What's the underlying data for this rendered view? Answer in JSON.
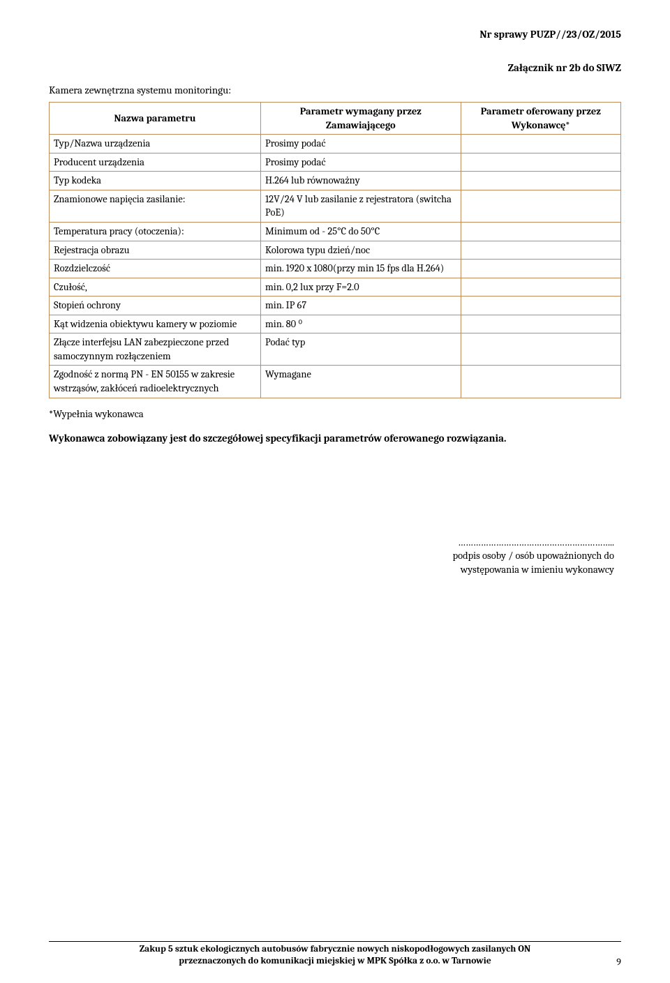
{
  "header": {
    "case_number": "Nr sprawy PUZP//23/OZ/2015",
    "attachment_label": "Załącznik nr 2b do SIWZ"
  },
  "section_title": "Kamera zewnętrzna systemu monitoringu:",
  "table": {
    "headers": {
      "col1": "Nazwa parametru",
      "col2": "Parametr wymagany przez Zamawiającego",
      "col3": "Parametr oferowany przez Wykonawcę*"
    },
    "rows": [
      {
        "name": "Typ/Nazwa urządzenia",
        "required": "Prosimy podać",
        "offered": ""
      },
      {
        "name": "Producent urządzenia",
        "required": "Prosimy podać",
        "offered": ""
      },
      {
        "name": "Typ kodeka",
        "required": "H.264 lub równoważny",
        "offered": ""
      },
      {
        "name": "Znamionowe napięcia zasilanie:",
        "required": "12V/24 V lub zasilanie z rejestratora (switcha PoE)",
        "offered": ""
      },
      {
        "name": "Temperatura pracy (otoczenia):",
        "required": "Minimum od - 25°C do 50°C",
        "offered": ""
      },
      {
        "name": "Rejestracja obrazu",
        "required": "Kolorowa typu dzień/noc",
        "offered": ""
      },
      {
        "name": "Rozdzielczość",
        "required": "min. 1920 x 1080(przy min 15 fps dla H.264)",
        "offered": ""
      },
      {
        "name": "Czułość,",
        "required": "min. 0,2 lux przy F=2.0",
        "offered": ""
      },
      {
        "name": "Stopień ochrony",
        "required": "min. IP 67",
        "offered": ""
      },
      {
        "name": "Kąt widzenia obiektywu kamery w poziomie",
        "required": "min. 80 ⁰",
        "offered": ""
      },
      {
        "name": "Złącze interfejsu LAN zabezpieczone przed samoczynnym rozłączeniem",
        "required": "Podać typ",
        "offered": ""
      },
      {
        "name": "Zgodność z normą PN - EN 50155 w zakresie wstrząsów, zakłóceń radioelektrycznych",
        "required": "Wymagane",
        "offered": ""
      }
    ]
  },
  "notes": {
    "fill_note": "*Wypełnia wykonawca",
    "obligation": "Wykonawca zobowiązany jest do szczegółowej specyfikacji parametrów oferowanego rozwiązania."
  },
  "signature": {
    "dots": "……………………………………………………..",
    "line1": "podpis osoby / osób upoważnionych do",
    "line2": "występowania w imieniu wykonawcy"
  },
  "footer": {
    "line1": "Zakup 5 sztuk ekologicznych autobusów fabrycznie nowych niskopodłogowych zasilanych ON",
    "line2": "przeznaczonych do komunikacji miejskiej w MPK Spółka z o.o. w Tarnowie"
  },
  "page_number": "9",
  "colors": {
    "border": "#c18c5a",
    "text": "#000000",
    "background": "#ffffff"
  },
  "typography": {
    "body_fontsize": 14.5,
    "header_fontsize": 15,
    "footer_fontsize": 13.5
  }
}
